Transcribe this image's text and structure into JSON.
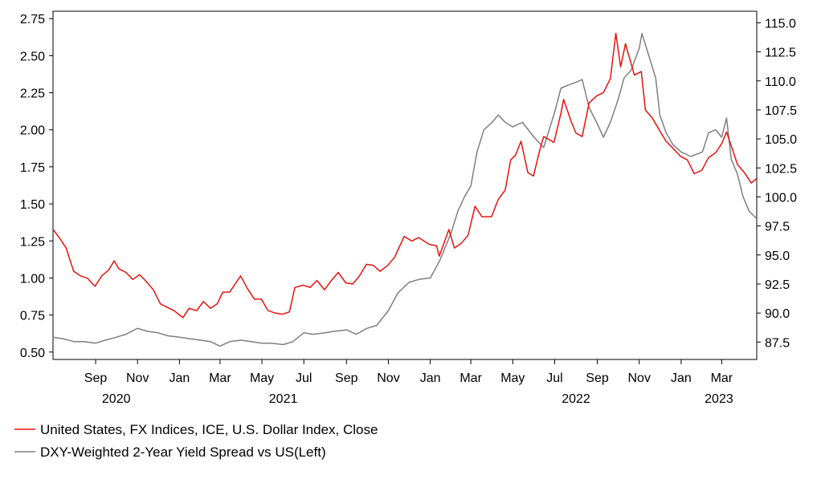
{
  "chart_data": {
    "type": "line",
    "title": "",
    "x_range": [
      "2020-07-01",
      "2023-04-21"
    ],
    "left_axis": {
      "ylim": [
        0.45,
        2.8
      ],
      "ticks": [
        "2.75",
        "2.50",
        "2.25",
        "2.00",
        "1.75",
        "1.50",
        "1.25",
        "1.00",
        "0.75",
        "0.50"
      ]
    },
    "right_axis": {
      "ylim": [
        86.0,
        116.0
      ],
      "ticks": [
        "115.0",
        "112.5",
        "110.0",
        "107.5",
        "105.0",
        "102.5",
        "100.0",
        "97.5",
        "95.0",
        "92.5",
        "90.0",
        "87.5"
      ]
    },
    "x_month_ticks": [
      {
        "label": "Sep",
        "date": "2020-09-01"
      },
      {
        "label": "Nov",
        "date": "2020-11-01"
      },
      {
        "label": "Jan",
        "date": "2021-01-01"
      },
      {
        "label": "Mar",
        "date": "2021-03-01"
      },
      {
        "label": "May",
        "date": "2021-05-01"
      },
      {
        "label": "Jul",
        "date": "2021-07-01"
      },
      {
        "label": "Sep",
        "date": "2021-09-01"
      },
      {
        "label": "Nov",
        "date": "2021-11-01"
      },
      {
        "label": "Jan",
        "date": "2022-01-01"
      },
      {
        "label": "Mar",
        "date": "2022-03-01"
      },
      {
        "label": "May",
        "date": "2022-05-01"
      },
      {
        "label": "Jul",
        "date": "2022-07-01"
      },
      {
        "label": "Sep",
        "date": "2022-09-01"
      },
      {
        "label": "Nov",
        "date": "2022-11-01"
      },
      {
        "label": "Jan",
        "date": "2023-01-01"
      },
      {
        "label": "Mar",
        "date": "2023-03-01"
      }
    ],
    "x_year_labels": [
      {
        "label": "2020",
        "date": "2020-10-01"
      },
      {
        "label": "2021",
        "date": "2021-06-01"
      },
      {
        "label": "2022",
        "date": "2022-08-01"
      },
      {
        "label": "2023",
        "date": "2023-02-25"
      }
    ],
    "legend_position": "bottom-left",
    "series": [
      {
        "name": "United States, FX Indices, ICE, U.S. Dollar Index, Close",
        "axis": "right",
        "color": "#e8120c",
        "points": [
          [
            "2020-07-01",
            97.2
          ],
          [
            "2020-07-10",
            96.5
          ],
          [
            "2020-07-20",
            95.6
          ],
          [
            "2020-07-31",
            93.6
          ],
          [
            "2020-08-10",
            93.2
          ],
          [
            "2020-08-20",
            93.0
          ],
          [
            "2020-08-31",
            92.3
          ],
          [
            "2020-09-10",
            93.2
          ],
          [
            "2020-09-20",
            93.7
          ],
          [
            "2020-09-28",
            94.5
          ],
          [
            "2020-10-05",
            93.8
          ],
          [
            "2020-10-15",
            93.5
          ],
          [
            "2020-10-25",
            92.9
          ],
          [
            "2020-11-04",
            93.3
          ],
          [
            "2020-11-14",
            92.7
          ],
          [
            "2020-11-24",
            92.0
          ],
          [
            "2020-12-04",
            90.8
          ],
          [
            "2020-12-14",
            90.5
          ],
          [
            "2020-12-24",
            90.2
          ],
          [
            "2021-01-06",
            89.6
          ],
          [
            "2021-01-15",
            90.4
          ],
          [
            "2021-01-26",
            90.2
          ],
          [
            "2021-02-05",
            91.0
          ],
          [
            "2021-02-15",
            90.4
          ],
          [
            "2021-02-25",
            90.8
          ],
          [
            "2021-03-05",
            91.8
          ],
          [
            "2021-03-15",
            91.8
          ],
          [
            "2021-03-31",
            93.2
          ],
          [
            "2021-04-10",
            92.1
          ],
          [
            "2021-04-20",
            91.2
          ],
          [
            "2021-04-30",
            91.2
          ],
          [
            "2021-05-10",
            90.2
          ],
          [
            "2021-05-20",
            90.0
          ],
          [
            "2021-05-31",
            89.9
          ],
          [
            "2021-06-10",
            90.1
          ],
          [
            "2021-06-18",
            92.2
          ],
          [
            "2021-06-30",
            92.4
          ],
          [
            "2021-07-10",
            92.2
          ],
          [
            "2021-07-20",
            92.8
          ],
          [
            "2021-07-31",
            92.0
          ],
          [
            "2021-08-10",
            92.8
          ],
          [
            "2021-08-20",
            93.5
          ],
          [
            "2021-08-31",
            92.6
          ],
          [
            "2021-09-10",
            92.5
          ],
          [
            "2021-09-20",
            93.2
          ],
          [
            "2021-09-30",
            94.2
          ],
          [
            "2021-10-10",
            94.1
          ],
          [
            "2021-10-20",
            93.6
          ],
          [
            "2021-10-31",
            94.1
          ],
          [
            "2021-11-10",
            94.8
          ],
          [
            "2021-11-24",
            96.6
          ],
          [
            "2021-12-05",
            96.2
          ],
          [
            "2021-12-15",
            96.5
          ],
          [
            "2021-12-31",
            95.9
          ],
          [
            "2022-01-10",
            95.8
          ],
          [
            "2022-01-14",
            94.9
          ],
          [
            "2022-01-28",
            97.2
          ],
          [
            "2022-02-05",
            95.6
          ],
          [
            "2022-02-15",
            96.0
          ],
          [
            "2022-02-25",
            96.7
          ],
          [
            "2022-03-07",
            99.2
          ],
          [
            "2022-03-17",
            98.3
          ],
          [
            "2022-03-31",
            98.3
          ],
          [
            "2022-04-10",
            99.8
          ],
          [
            "2022-04-20",
            100.6
          ],
          [
            "2022-04-28",
            103.2
          ],
          [
            "2022-05-05",
            103.6
          ],
          [
            "2022-05-13",
            104.8
          ],
          [
            "2022-05-23",
            102.1
          ],
          [
            "2022-05-31",
            101.8
          ],
          [
            "2022-06-10",
            104.2
          ],
          [
            "2022-06-15",
            105.2
          ],
          [
            "2022-06-30",
            104.7
          ],
          [
            "2022-07-10",
            107.2
          ],
          [
            "2022-07-14",
            108.4
          ],
          [
            "2022-07-25",
            106.5
          ],
          [
            "2022-08-01",
            105.5
          ],
          [
            "2022-08-10",
            105.2
          ],
          [
            "2022-08-20",
            108.1
          ],
          [
            "2022-08-31",
            108.7
          ],
          [
            "2022-09-10",
            109.0
          ],
          [
            "2022-09-20",
            110.2
          ],
          [
            "2022-09-28",
            114.1
          ],
          [
            "2022-10-05",
            111.2
          ],
          [
            "2022-10-12",
            113.2
          ],
          [
            "2022-10-25",
            110.5
          ],
          [
            "2022-11-04",
            110.8
          ],
          [
            "2022-11-10",
            107.5
          ],
          [
            "2022-11-20",
            106.8
          ],
          [
            "2022-11-30",
            105.8
          ],
          [
            "2022-12-10",
            104.8
          ],
          [
            "2022-12-20",
            104.2
          ],
          [
            "2022-12-31",
            103.5
          ],
          [
            "2023-01-10",
            103.2
          ],
          [
            "2023-01-20",
            102.0
          ],
          [
            "2023-01-31",
            102.3
          ],
          [
            "2023-02-10",
            103.4
          ],
          [
            "2023-02-20",
            103.8
          ],
          [
            "2023-03-01",
            104.6
          ],
          [
            "2023-03-08",
            105.6
          ],
          [
            "2023-03-15",
            104.4
          ],
          [
            "2023-03-24",
            102.8
          ],
          [
            "2023-04-03",
            102.1
          ],
          [
            "2023-04-13",
            101.2
          ],
          [
            "2023-04-21",
            101.6
          ]
        ]
      },
      {
        "name": "DXY-Weighted 2-Year Yield Spread vs US(Left)",
        "axis": "left",
        "color": "#7f7f7f",
        "points": [
          [
            "2020-07-01",
            0.6
          ],
          [
            "2020-07-15",
            0.59
          ],
          [
            "2020-08-01",
            0.57
          ],
          [
            "2020-08-15",
            0.57
          ],
          [
            "2020-09-01",
            0.56
          ],
          [
            "2020-09-15",
            0.58
          ],
          [
            "2020-10-01",
            0.6
          ],
          [
            "2020-10-15",
            0.62
          ],
          [
            "2020-11-01",
            0.66
          ],
          [
            "2020-11-15",
            0.64
          ],
          [
            "2020-12-01",
            0.63
          ],
          [
            "2020-12-15",
            0.61
          ],
          [
            "2021-01-01",
            0.6
          ],
          [
            "2021-01-15",
            0.59
          ],
          [
            "2021-02-01",
            0.58
          ],
          [
            "2021-02-15",
            0.57
          ],
          [
            "2021-03-01",
            0.54
          ],
          [
            "2021-03-15",
            0.57
          ],
          [
            "2021-04-01",
            0.58
          ],
          [
            "2021-04-15",
            0.57
          ],
          [
            "2021-05-01",
            0.56
          ],
          [
            "2021-05-15",
            0.56
          ],
          [
            "2021-06-01",
            0.55
          ],
          [
            "2021-06-15",
            0.57
          ],
          [
            "2021-07-01",
            0.63
          ],
          [
            "2021-07-15",
            0.62
          ],
          [
            "2021-08-01",
            0.63
          ],
          [
            "2021-08-15",
            0.64
          ],
          [
            "2021-09-01",
            0.65
          ],
          [
            "2021-09-15",
            0.62
          ],
          [
            "2021-10-01",
            0.66
          ],
          [
            "2021-10-15",
            0.68
          ],
          [
            "2021-11-01",
            0.78
          ],
          [
            "2021-11-15",
            0.9
          ],
          [
            "2021-12-01",
            0.97
          ],
          [
            "2021-12-15",
            0.99
          ],
          [
            "2022-01-01",
            1.0
          ],
          [
            "2022-01-15",
            1.12
          ],
          [
            "2022-01-31",
            1.3
          ],
          [
            "2022-02-10",
            1.45
          ],
          [
            "2022-02-20",
            1.55
          ],
          [
            "2022-03-01",
            1.62
          ],
          [
            "2022-03-10",
            1.85
          ],
          [
            "2022-03-20",
            2.0
          ],
          [
            "2022-04-01",
            2.05
          ],
          [
            "2022-04-10",
            2.1
          ],
          [
            "2022-04-20",
            2.05
          ],
          [
            "2022-05-01",
            2.02
          ],
          [
            "2022-05-15",
            2.05
          ],
          [
            "2022-06-01",
            1.95
          ],
          [
            "2022-06-15",
            1.88
          ],
          [
            "2022-07-01",
            2.12
          ],
          [
            "2022-07-10",
            2.28
          ],
          [
            "2022-07-20",
            2.3
          ],
          [
            "2022-08-01",
            2.32
          ],
          [
            "2022-08-10",
            2.34
          ],
          [
            "2022-08-20",
            2.15
          ],
          [
            "2022-08-31",
            2.05
          ],
          [
            "2022-09-10",
            1.95
          ],
          [
            "2022-09-20",
            2.05
          ],
          [
            "2022-10-01",
            2.2
          ],
          [
            "2022-10-10",
            2.35
          ],
          [
            "2022-10-20",
            2.4
          ],
          [
            "2022-11-01",
            2.55
          ],
          [
            "2022-11-05",
            2.65
          ],
          [
            "2022-11-15",
            2.5
          ],
          [
            "2022-11-25",
            2.35
          ],
          [
            "2022-12-01",
            2.1
          ],
          [
            "2022-12-10",
            1.98
          ],
          [
            "2022-12-20",
            1.9
          ],
          [
            "2023-01-01",
            1.85
          ],
          [
            "2023-01-15",
            1.82
          ],
          [
            "2023-02-01",
            1.85
          ],
          [
            "2023-02-10",
            1.98
          ],
          [
            "2023-02-20",
            2.0
          ],
          [
            "2023-03-01",
            1.95
          ],
          [
            "2023-03-08",
            2.08
          ],
          [
            "2023-03-15",
            1.8
          ],
          [
            "2023-03-24",
            1.7
          ],
          [
            "2023-04-01",
            1.55
          ],
          [
            "2023-04-10",
            1.45
          ],
          [
            "2023-04-21",
            1.4
          ]
        ]
      }
    ]
  }
}
